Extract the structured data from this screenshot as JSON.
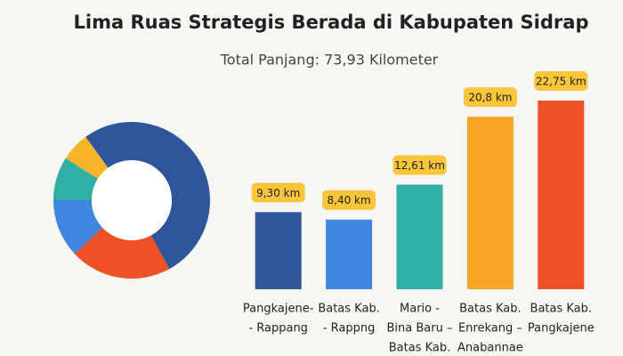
{
  "header": {
    "title": "Lima Ruas Strategis Berada di Kabupaten Sidrap",
    "subtitle": "Total Panjang: 73,93 Kilometer"
  },
  "chart_data": [
    {
      "type": "pie",
      "values": [
        42,
        21,
        12,
        9,
        6,
        10
      ],
      "colors": [
        "#2f569b",
        "#ee5125",
        "#3f86de",
        "#30b0a5",
        "#f6b52a",
        "#2f569b"
      ]
    },
    {
      "type": "bar",
      "categories": [
        [
          "Pangkajene-",
          "- Rappang"
        ],
        [
          "Batas Kab.",
          "- Rappng"
        ],
        [
          "Mario -",
          "Bina Baru –",
          "Batas Kab."
        ],
        [
          "Batas Kab.",
          "Enrekang –",
          "Anabannae"
        ],
        [
          "Batas Kab.",
          "Pangkajene"
        ]
      ],
      "values": [
        9.3,
        8.4,
        12.61,
        20.8,
        22.75
      ],
      "value_labels": [
        "9,30 km",
        "8,40 km",
        "12,61 km",
        "20,8 km",
        "22,75 km"
      ],
      "colors": [
        "#2f569b",
        "#3f86de",
        "#30b0a5",
        "#f6a623",
        "#ee5125"
      ]
    }
  ]
}
